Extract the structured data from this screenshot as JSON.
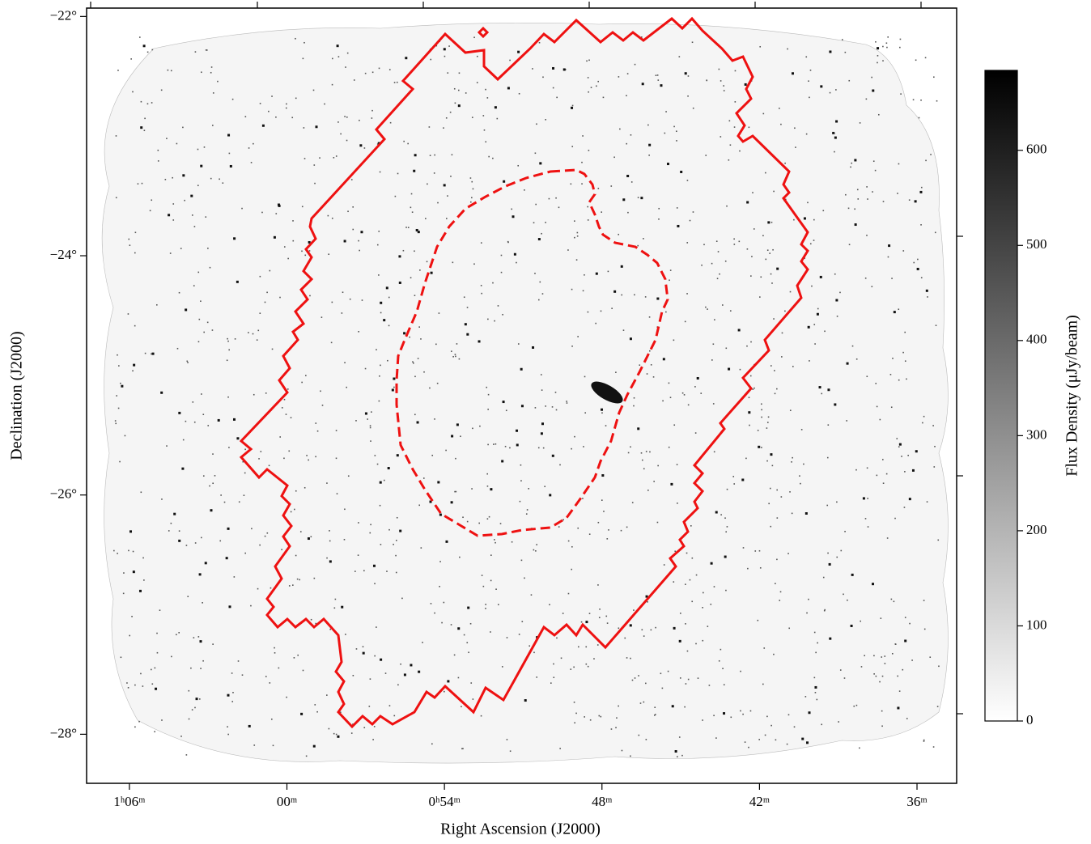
{
  "chart_data": {
    "type": "image",
    "xlabel": "Right Ascension (J2000)",
    "ylabel": "Declination (J2000)",
    "xlim": [
      67.63,
      34.49
    ],
    "xticks": [
      {
        "value": 66,
        "label": "1ʰ06ᵐ"
      },
      {
        "value": 60,
        "label": "00ᵐ"
      },
      {
        "value": 54,
        "label": "0ʰ54ᵐ"
      },
      {
        "value": 48,
        "label": "48ᵐ"
      },
      {
        "value": 42,
        "label": "42ᵐ"
      },
      {
        "value": 36,
        "label": "36ᵐ"
      }
    ],
    "ylim": [
      -28.41,
      -21.93
    ],
    "yticks": [
      {
        "value": -22,
        "label": "−22°"
      },
      {
        "value": -24,
        "label": "−24°"
      },
      {
        "value": -26,
        "label": "−26°"
      },
      {
        "value": -28,
        "label": "−28°"
      }
    ],
    "contour_color": "#ee1111",
    "colorbar": {
      "label": "Flux Density (μJy/beam)",
      "clim": [
        0,
        684
      ],
      "ticks": [
        0,
        100,
        200,
        300,
        400,
        500,
        600
      ]
    }
  }
}
